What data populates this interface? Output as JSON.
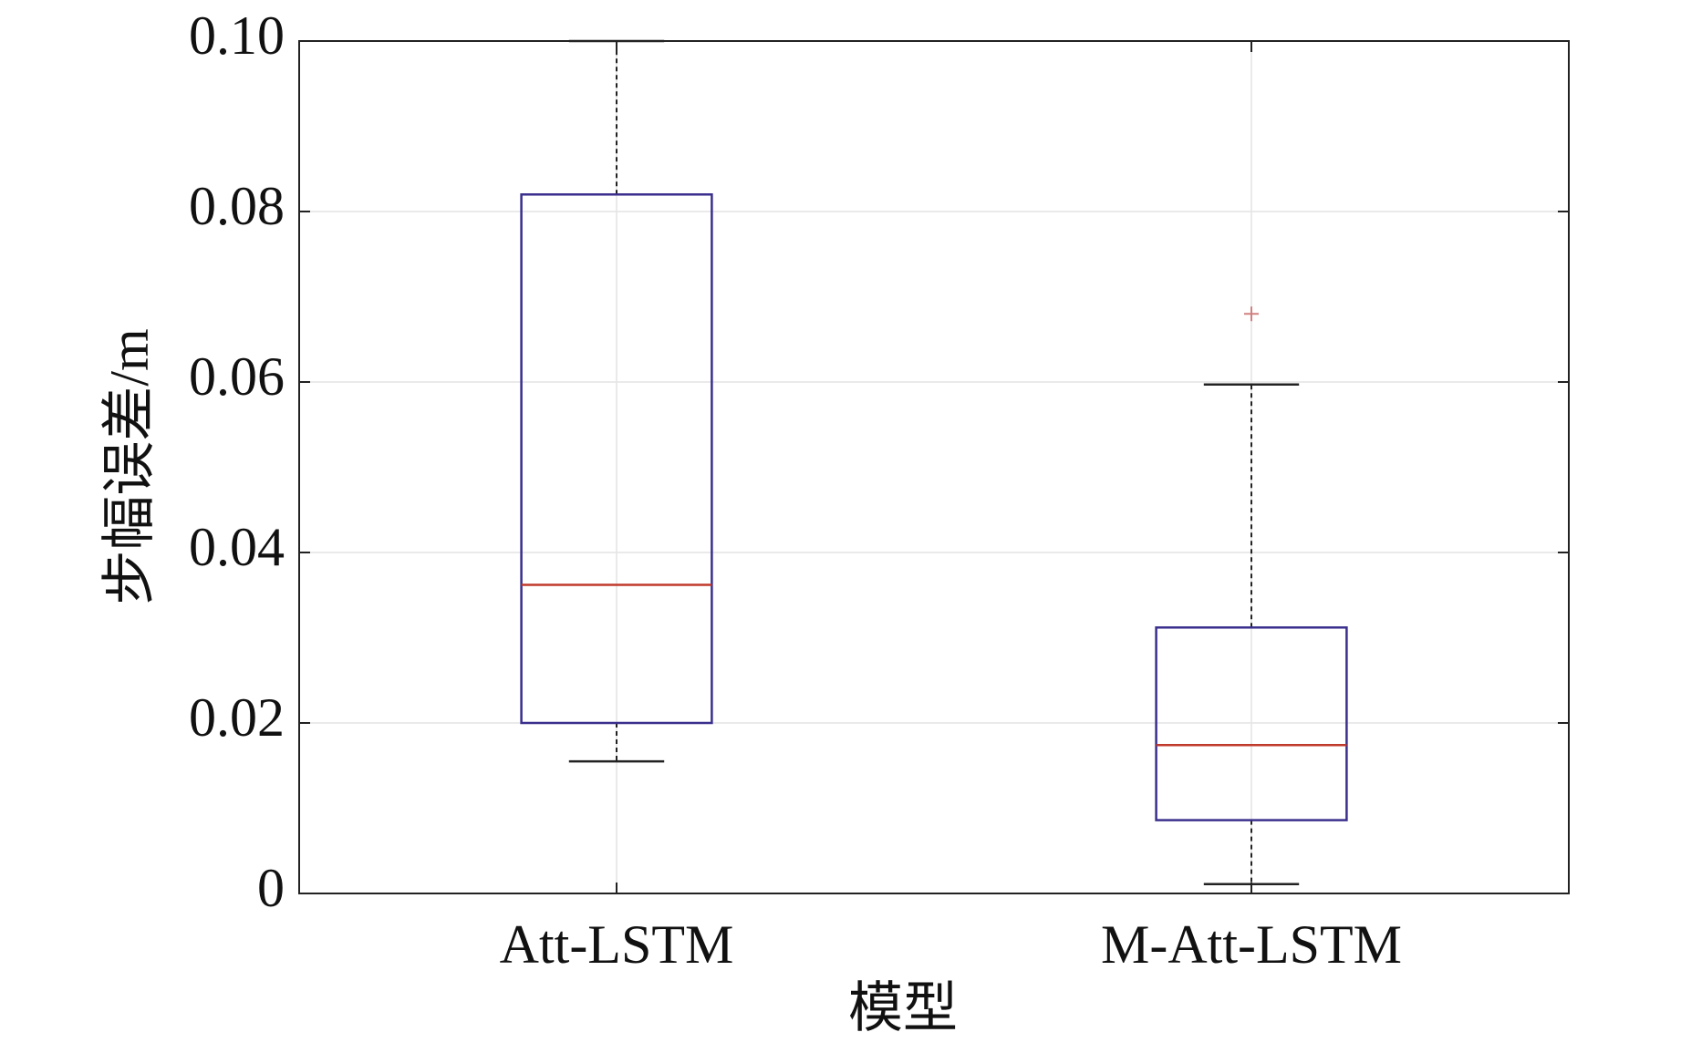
{
  "chart_data": {
    "type": "box",
    "x_label": "模型",
    "y_label": "步幅误差/m",
    "categories": [
      "Att-LSTM",
      "M-Att-LSTM"
    ],
    "whisker_low": [
      0.0155,
      0.0011
    ],
    "q1": [
      0.02,
      0.0086
    ],
    "median": [
      0.0362,
      0.0174
    ],
    "q3": [
      0.082,
      0.0312
    ],
    "whisker_high": [
      0.1,
      0.0597
    ],
    "outliers": [
      [],
      [
        0.068
      ]
    ],
    "box_color": "#3a2f8c",
    "median_color": "#c0392b",
    "whisker_color": "#222222",
    "outlier_color": "#d08080",
    "ylim": [
      0,
      0.1
    ],
    "yticks": [
      0,
      0.02,
      0.04,
      0.06,
      0.08,
      {
        "value": 0.1,
        "label": "0.10"
      }
    ],
    "grid": true
  }
}
